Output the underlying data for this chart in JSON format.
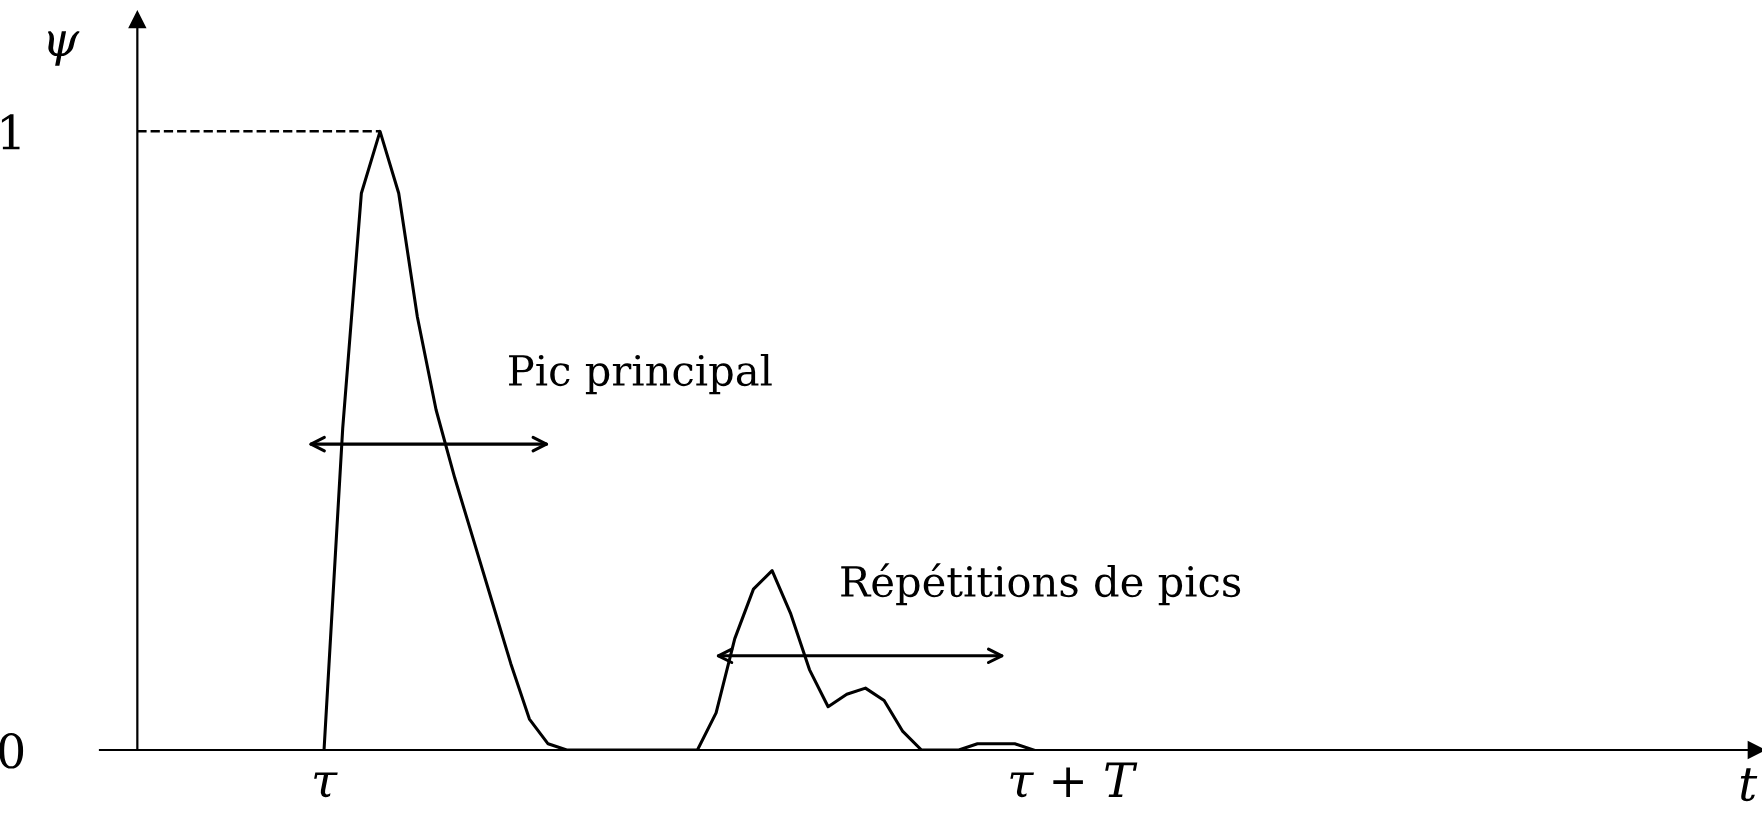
{
  "chart_data": {
    "type": "line",
    "xlabel": "t",
    "ylabel": "ψ",
    "categories": [
      null,
      null,
      null,
      null,
      null,
      null,
      null,
      null,
      null,
      null,
      "τ",
      null,
      null,
      null,
      null,
      null,
      null,
      null,
      null,
      null,
      null,
      null,
      null,
      null,
      null,
      null,
      null,
      null,
      null,
      null,
      null,
      null,
      null,
      null,
      null,
      null,
      null,
      null,
      null,
      null,
      null,
      null,
      null,
      null,
      null,
      null,
      null,
      null,
      null,
      null,
      "τ + T",
      null,
      null,
      null,
      null,
      null,
      null,
      null,
      null,
      null,
      null,
      null,
      null,
      null,
      null,
      null,
      null,
      null,
      null,
      null,
      null,
      null,
      null,
      null,
      null,
      null,
      null,
      null,
      null,
      null,
      null,
      null,
      null,
      null,
      null,
      null,
      null
    ],
    "series": [
      {
        "color": "#000000",
        "values": [
          null,
          null,
          null,
          null,
          null,
          null,
          null,
          null,
          null,
          null,
          0,
          0.52,
          0.9,
          1.0,
          0.9,
          0.7,
          0.55,
          0.44,
          0.34,
          0.24,
          0.14,
          0.05,
          0.01,
          0,
          0,
          0,
          0,
          0,
          0,
          0,
          0,
          0.06,
          0.18,
          0.26,
          0.29,
          0.22,
          0.13,
          0.07,
          0.09,
          0.1,
          0.08,
          0.03,
          0,
          0,
          0,
          0.01,
          0.01,
          0.01,
          0,
          null,
          null,
          null,
          null,
          null,
          null,
          null,
          null,
          null,
          null,
          null,
          null,
          null,
          null,
          null,
          null,
          null,
          null,
          null,
          null,
          null,
          null,
          null,
          null,
          null,
          null,
          null,
          null,
          null,
          null,
          null,
          null,
          null,
          null,
          null,
          null,
          null,
          null
        ]
      }
    ],
    "ylim": [
      0,
      1.18
    ],
    "yticks": [
      0,
      1
    ],
    "ref_lines": [
      {
        "axis": "y",
        "value": 1,
        "line_style": "dashed",
        "color": "#000000"
      }
    ],
    "annotations": [
      "Pic principal",
      "Répétitions de pics"
    ],
    "grid": false,
    "legend": false,
    "line_style": "solid",
    "marker": "none"
  }
}
